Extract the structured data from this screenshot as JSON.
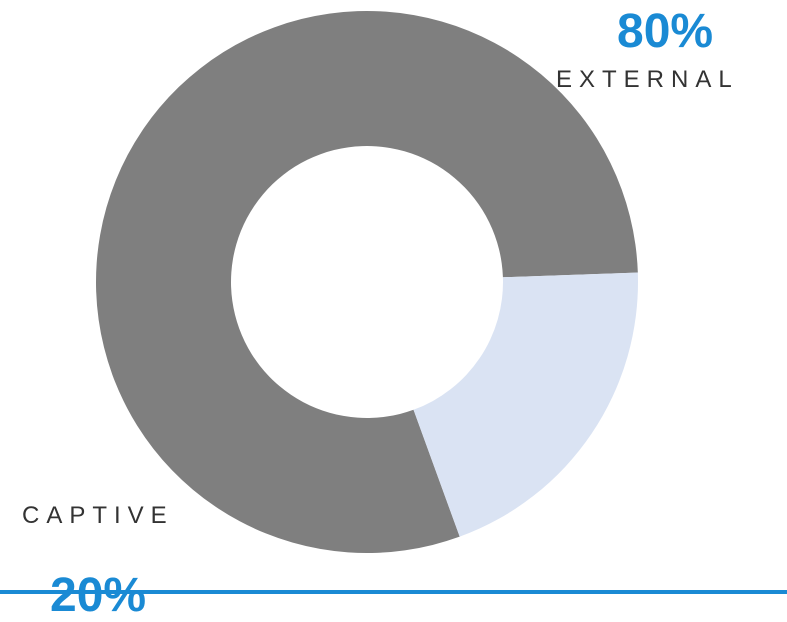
{
  "chart_data": {
    "type": "pie",
    "variant": "donut",
    "slices": [
      {
        "label": "EXTERNAL",
        "value": 80,
        "display": "80%",
        "color": "#7f7f7f"
      },
      {
        "label": "CAPTIVE",
        "value": 20,
        "display": "20%",
        "color": "#dae3f3"
      }
    ],
    "colors": {
      "percent_text": "#1a8ad4",
      "category_text": "#333333",
      "bottom_rule": "#1a8ad4"
    }
  }
}
